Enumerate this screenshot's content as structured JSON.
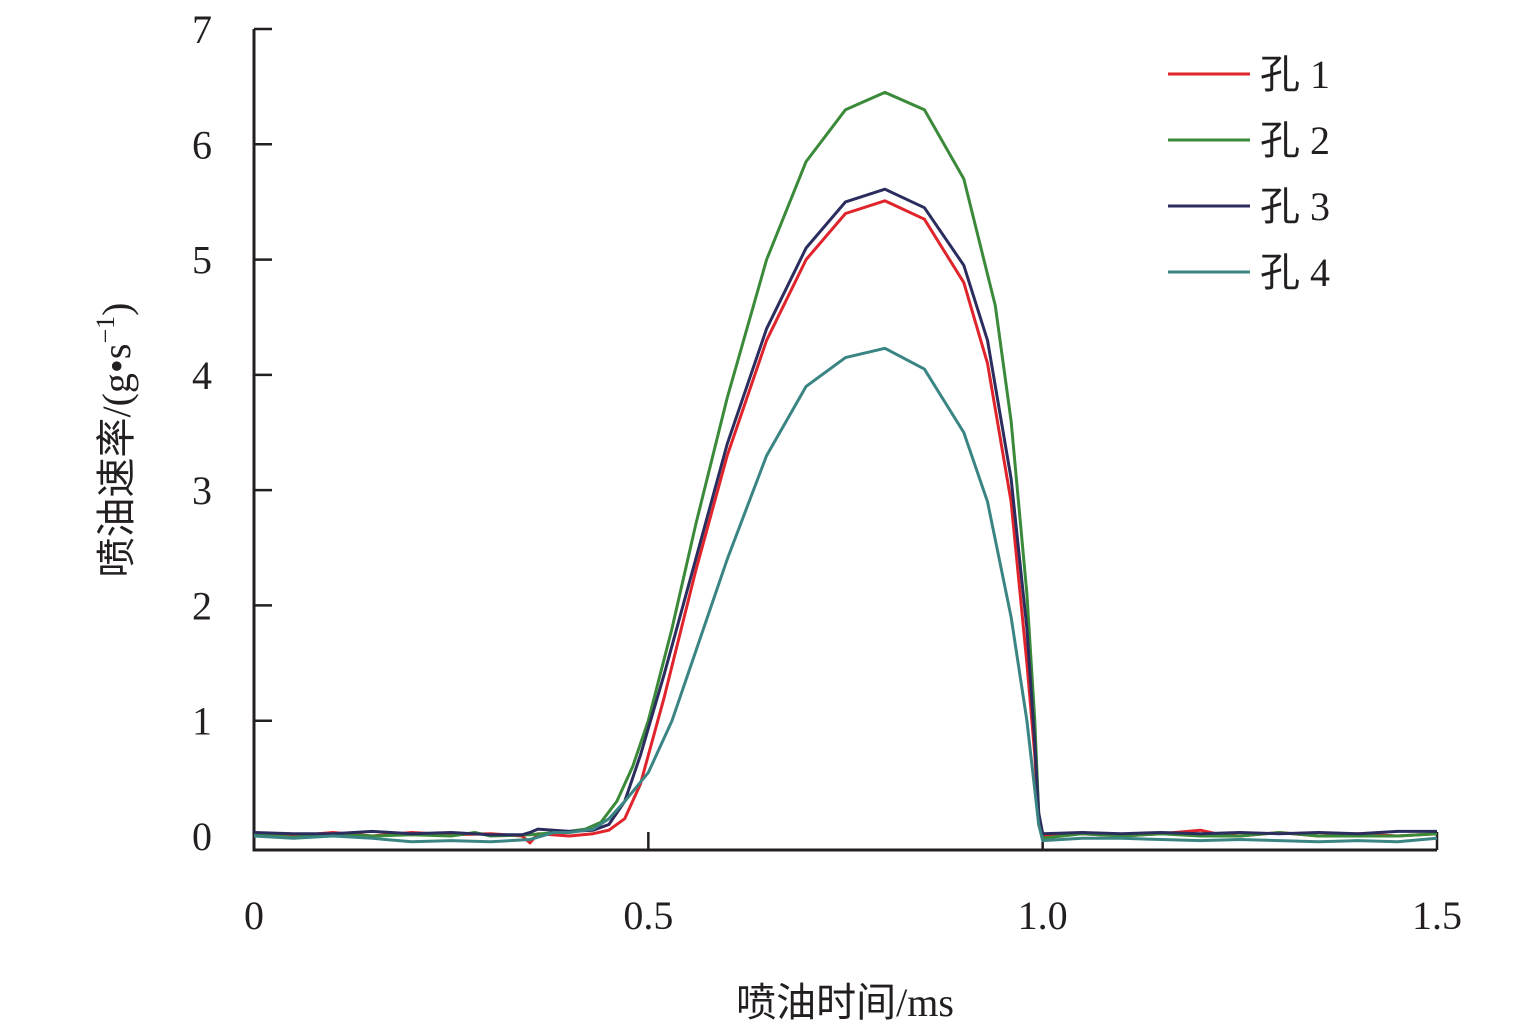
{
  "chart_data": {
    "type": "line",
    "xlabel": "喷油时间/ms",
    "ylabel_main": "喷油速率/(g•s",
    "ylabel_exp": "−1",
    "ylabel_close": ")",
    "xlim": [
      0,
      1.5
    ],
    "ylim": [
      0,
      7
    ],
    "x_ticks": [
      0,
      0.5,
      1.0,
      1.5
    ],
    "x_tick_labels": [
      "0",
      "0.5",
      "1.0",
      "1.5"
    ],
    "y_ticks": [
      0,
      1,
      2,
      3,
      4,
      5,
      6,
      7
    ],
    "y_tick_labels": [
      "0",
      "1",
      "2",
      "3",
      "4",
      "5",
      "6",
      "7"
    ],
    "grid": false,
    "legend_position": "top-right",
    "series": [
      {
        "name": "孔 1",
        "color": "#e0242b",
        "points": [
          [
            0,
            0.02
          ],
          [
            0.05,
            0.0
          ],
          [
            0.1,
            0.03
          ],
          [
            0.15,
            0.0
          ],
          [
            0.2,
            0.03
          ],
          [
            0.25,
            0.01
          ],
          [
            0.3,
            0.02
          ],
          [
            0.34,
            0.0
          ],
          [
            0.35,
            -0.06
          ],
          [
            0.36,
            0.02
          ],
          [
            0.4,
            0.0
          ],
          [
            0.43,
            0.02
          ],
          [
            0.45,
            0.05
          ],
          [
            0.47,
            0.15
          ],
          [
            0.49,
            0.45
          ],
          [
            0.52,
            1.2
          ],
          [
            0.56,
            2.3
          ],
          [
            0.6,
            3.3
          ],
          [
            0.65,
            4.3
          ],
          [
            0.7,
            5.0
          ],
          [
            0.75,
            5.4
          ],
          [
            0.8,
            5.51
          ],
          [
            0.85,
            5.35
          ],
          [
            0.9,
            4.8
          ],
          [
            0.93,
            4.1
          ],
          [
            0.96,
            2.9
          ],
          [
            0.98,
            1.5
          ],
          [
            0.99,
            0.7
          ],
          [
            0.995,
            0.1
          ],
          [
            1.0,
            0.0
          ],
          [
            1.05,
            0.02
          ],
          [
            1.1,
            0.0
          ],
          [
            1.15,
            0.02
          ],
          [
            1.2,
            0.05
          ],
          [
            1.22,
            0.02
          ],
          [
            1.25,
            0.0
          ],
          [
            1.3,
            0.03
          ],
          [
            1.35,
            0.0
          ],
          [
            1.4,
            0.02
          ],
          [
            1.45,
            0.0
          ],
          [
            1.5,
            0.02
          ]
        ]
      },
      {
        "name": "孔 2",
        "color": "#3b8a3a",
        "points": [
          [
            0,
            0.01
          ],
          [
            0.05,
            -0.01
          ],
          [
            0.1,
            0.02
          ],
          [
            0.15,
            0.0
          ],
          [
            0.2,
            0.01
          ],
          [
            0.25,
            0.0
          ],
          [
            0.28,
            0.03
          ],
          [
            0.3,
            0.0
          ],
          [
            0.35,
            0.01
          ],
          [
            0.4,
            0.04
          ],
          [
            0.42,
            0.06
          ],
          [
            0.44,
            0.12
          ],
          [
            0.46,
            0.3
          ],
          [
            0.48,
            0.6
          ],
          [
            0.5,
            1.0
          ],
          [
            0.53,
            1.8
          ],
          [
            0.56,
            2.7
          ],
          [
            0.6,
            3.8
          ],
          [
            0.65,
            5.0
          ],
          [
            0.7,
            5.85
          ],
          [
            0.75,
            6.3
          ],
          [
            0.8,
            6.45
          ],
          [
            0.85,
            6.3
          ],
          [
            0.9,
            5.7
          ],
          [
            0.94,
            4.6
          ],
          [
            0.96,
            3.6
          ],
          [
            0.98,
            2.1
          ],
          [
            0.99,
            1.0
          ],
          [
            0.995,
            0.2
          ],
          [
            1.0,
            -0.02
          ],
          [
            1.05,
            0.02
          ],
          [
            1.1,
            0.0
          ],
          [
            1.15,
            0.02
          ],
          [
            1.2,
            0.0
          ],
          [
            1.25,
            0.0
          ],
          [
            1.3,
            0.03
          ],
          [
            1.35,
            0.0
          ],
          [
            1.4,
            0.0
          ],
          [
            1.45,
            0.0
          ],
          [
            1.5,
            0.02
          ]
        ]
      },
      {
        "name": "孔 3",
        "color": "#2b2d5e",
        "points": [
          [
            0,
            0.03
          ],
          [
            0.05,
            0.02
          ],
          [
            0.1,
            0.02
          ],
          [
            0.15,
            0.04
          ],
          [
            0.2,
            0.02
          ],
          [
            0.25,
            0.03
          ],
          [
            0.3,
            0.01
          ],
          [
            0.34,
            0.01
          ],
          [
            0.35,
            0.03
          ],
          [
            0.36,
            0.06
          ],
          [
            0.4,
            0.04
          ],
          [
            0.43,
            0.05
          ],
          [
            0.45,
            0.1
          ],
          [
            0.47,
            0.3
          ],
          [
            0.49,
            0.7
          ],
          [
            0.52,
            1.4
          ],
          [
            0.56,
            2.4
          ],
          [
            0.6,
            3.4
          ],
          [
            0.65,
            4.4
          ],
          [
            0.7,
            5.1
          ],
          [
            0.75,
            5.5
          ],
          [
            0.8,
            5.61
          ],
          [
            0.85,
            5.45
          ],
          [
            0.9,
            4.95
          ],
          [
            0.93,
            4.3
          ],
          [
            0.96,
            3.1
          ],
          [
            0.98,
            1.8
          ],
          [
            0.99,
            0.8
          ],
          [
            0.995,
            0.2
          ],
          [
            1.0,
            0.02
          ],
          [
            1.05,
            0.03
          ],
          [
            1.1,
            0.02
          ],
          [
            1.15,
            0.03
          ],
          [
            1.2,
            0.02
          ],
          [
            1.25,
            0.03
          ],
          [
            1.3,
            0.02
          ],
          [
            1.35,
            0.03
          ],
          [
            1.4,
            0.02
          ],
          [
            1.45,
            0.04
          ],
          [
            1.5,
            0.04
          ]
        ]
      },
      {
        "name": "孔 4",
        "color": "#3a8584",
        "points": [
          [
            0,
            0.0
          ],
          [
            0.05,
            -0.02
          ],
          [
            0.1,
            0.0
          ],
          [
            0.15,
            -0.02
          ],
          [
            0.2,
            -0.05
          ],
          [
            0.25,
            -0.04
          ],
          [
            0.3,
            -0.05
          ],
          [
            0.35,
            -0.03
          ],
          [
            0.38,
            0.03
          ],
          [
            0.4,
            0.03
          ],
          [
            0.43,
            0.06
          ],
          [
            0.45,
            0.15
          ],
          [
            0.47,
            0.3
          ],
          [
            0.5,
            0.55
          ],
          [
            0.53,
            1.0
          ],
          [
            0.56,
            1.6
          ],
          [
            0.6,
            2.4
          ],
          [
            0.65,
            3.3
          ],
          [
            0.7,
            3.9
          ],
          [
            0.75,
            4.15
          ],
          [
            0.8,
            4.23
          ],
          [
            0.85,
            4.05
          ],
          [
            0.9,
            3.5
          ],
          [
            0.93,
            2.9
          ],
          [
            0.96,
            1.9
          ],
          [
            0.98,
            1.0
          ],
          [
            0.99,
            0.4
          ],
          [
            0.995,
            0.1
          ],
          [
            1.0,
            -0.04
          ],
          [
            1.05,
            -0.02
          ],
          [
            1.1,
            -0.02
          ],
          [
            1.15,
            -0.03
          ],
          [
            1.2,
            -0.04
          ],
          [
            1.25,
            -0.03
          ],
          [
            1.3,
            -0.04
          ],
          [
            1.35,
            -0.05
          ],
          [
            1.4,
            -0.04
          ],
          [
            1.45,
            -0.05
          ],
          [
            1.5,
            -0.02
          ]
        ]
      }
    ]
  }
}
